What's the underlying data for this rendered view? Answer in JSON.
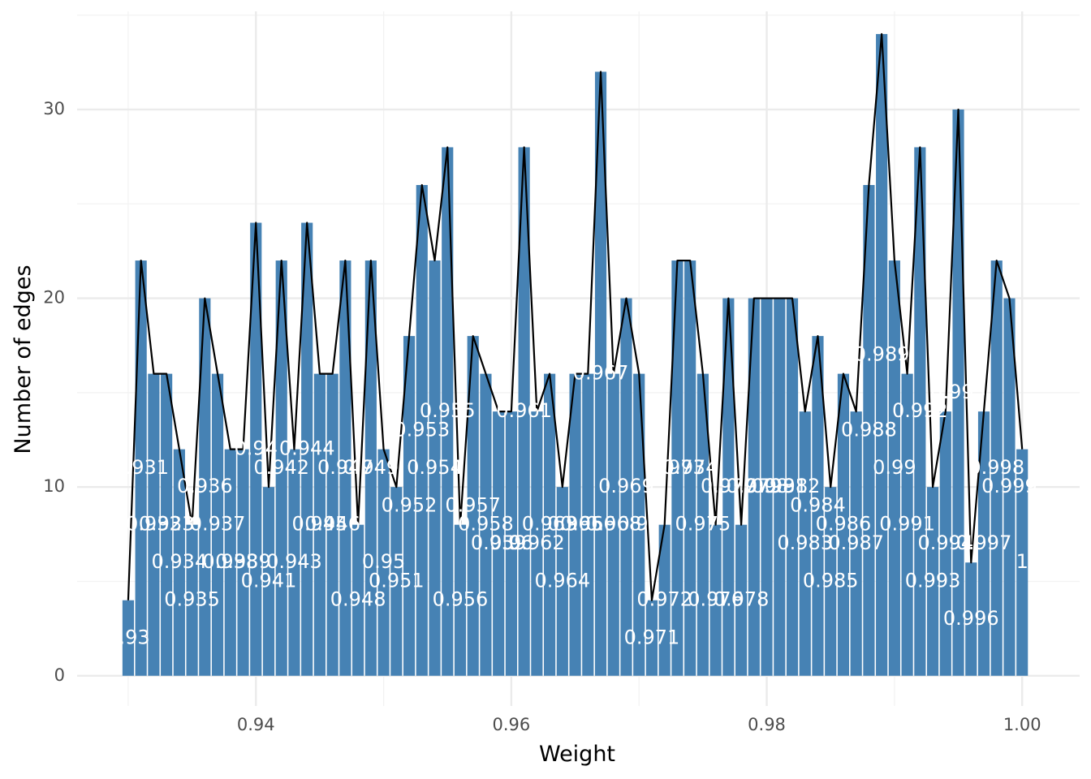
{
  "chart_data": {
    "type": "bar",
    "title": "",
    "xlabel": "Weight",
    "ylabel": "Number of edges",
    "xlim": [
      0.926,
      1.0045
    ],
    "ylim": [
      -1.6,
      35.2
    ],
    "x_ticks": [
      0.94,
      0.96,
      0.98,
      1.0
    ],
    "x_tick_labels": [
      "0.94",
      "0.96",
      "0.98",
      "1.00"
    ],
    "y_ticks": [
      0,
      10,
      20,
      30
    ],
    "y_tick_labels": [
      "0",
      "10",
      "20",
      "30"
    ],
    "grid": true,
    "legend": "none",
    "bar_color": "#4682B4",
    "line_color": "#000000",
    "label_color": "#ffffff",
    "points": [
      {
        "x": 0.93,
        "y": 4,
        "label": "0.93"
      },
      {
        "x": 0.931,
        "y": 22,
        "label": "0.931"
      },
      {
        "x": 0.932,
        "y": 16,
        "label": "0.932"
      },
      {
        "x": 0.933,
        "y": 16,
        "label": "0.933"
      },
      {
        "x": 0.934,
        "y": 12,
        "label": "0.934"
      },
      {
        "x": 0.935,
        "y": 8,
        "label": "0.935"
      },
      {
        "x": 0.936,
        "y": 20,
        "label": "0.936"
      },
      {
        "x": 0.937,
        "y": 16,
        "label": "0.937"
      },
      {
        "x": 0.938,
        "y": 12,
        "label": "0.938"
      },
      {
        "x": 0.939,
        "y": 12,
        "label": "0.939"
      },
      {
        "x": 0.94,
        "y": 24,
        "label": "0.94"
      },
      {
        "x": 0.941,
        "y": 10,
        "label": "0.941"
      },
      {
        "x": 0.942,
        "y": 22,
        "label": "0.942"
      },
      {
        "x": 0.943,
        "y": 12,
        "label": "0.943"
      },
      {
        "x": 0.944,
        "y": 24,
        "label": "0.944"
      },
      {
        "x": 0.945,
        "y": 16,
        "label": "0.945"
      },
      {
        "x": 0.946,
        "y": 16,
        "label": "0.946"
      },
      {
        "x": 0.947,
        "y": 22,
        "label": "0.947"
      },
      {
        "x": 0.948,
        "y": 8,
        "label": "0.948"
      },
      {
        "x": 0.949,
        "y": 22,
        "label": "0.949"
      },
      {
        "x": 0.95,
        "y": 12,
        "label": "0.95"
      },
      {
        "x": 0.951,
        "y": 10,
        "label": "0.951"
      },
      {
        "x": 0.952,
        "y": 18,
        "label": "0.952"
      },
      {
        "x": 0.953,
        "y": 26,
        "label": "0.953"
      },
      {
        "x": 0.954,
        "y": 22,
        "label": "0.954"
      },
      {
        "x": 0.955,
        "y": 28,
        "label": "0.955"
      },
      {
        "x": 0.956,
        "y": 8,
        "label": "0.956"
      },
      {
        "x": 0.957,
        "y": 18,
        "label": "0.957"
      },
      {
        "x": 0.958,
        "y": 16,
        "label": "0.958"
      },
      {
        "x": 0.959,
        "y": 14,
        "label": "0.959"
      },
      {
        "x": 0.96,
        "y": 14,
        "label": "0.96"
      },
      {
        "x": 0.961,
        "y": 28,
        "label": "0.961"
      },
      {
        "x": 0.962,
        "y": 14,
        "label": "0.962"
      },
      {
        "x": 0.963,
        "y": 16,
        "label": "0.963"
      },
      {
        "x": 0.964,
        "y": 10,
        "label": "0.964"
      },
      {
        "x": 0.965,
        "y": 16,
        "label": "0.965"
      },
      {
        "x": 0.966,
        "y": 16,
        "label": "0.966"
      },
      {
        "x": 0.967,
        "y": 32,
        "label": "0.967"
      },
      {
        "x": 0.968,
        "y": 16,
        "label": "0.968"
      },
      {
        "x": 0.969,
        "y": 20,
        "label": "0.969"
      },
      {
        "x": 0.97,
        "y": 16,
        "label": "0.97"
      },
      {
        "x": 0.971,
        "y": 4,
        "label": "0.971"
      },
      {
        "x": 0.972,
        "y": 8,
        "label": "0.972"
      },
      {
        "x": 0.973,
        "y": 22,
        "label": "0.973"
      },
      {
        "x": 0.974,
        "y": 22,
        "label": "0.974"
      },
      {
        "x": 0.975,
        "y": 16,
        "label": "0.975"
      },
      {
        "x": 0.976,
        "y": 8,
        "label": "0.976"
      },
      {
        "x": 0.977,
        "y": 20,
        "label": "0.977"
      },
      {
        "x": 0.978,
        "y": 8,
        "label": "0.978"
      },
      {
        "x": 0.979,
        "y": 20,
        "label": "0.979"
      },
      {
        "x": 0.98,
        "y": 20,
        "label": "0.98"
      },
      {
        "x": 0.981,
        "y": 20,
        "label": "0.981"
      },
      {
        "x": 0.982,
        "y": 20,
        "label": "0.982"
      },
      {
        "x": 0.983,
        "y": 14,
        "label": "0.983"
      },
      {
        "x": 0.984,
        "y": 18,
        "label": "0.984"
      },
      {
        "x": 0.985,
        "y": 10,
        "label": "0.985"
      },
      {
        "x": 0.986,
        "y": 16,
        "label": "0.986"
      },
      {
        "x": 0.987,
        "y": 14,
        "label": "0.987"
      },
      {
        "x": 0.988,
        "y": 26,
        "label": "0.988"
      },
      {
        "x": 0.989,
        "y": 34,
        "label": "0.989"
      },
      {
        "x": 0.99,
        "y": 22,
        "label": "0.99"
      },
      {
        "x": 0.991,
        "y": 16,
        "label": "0.991"
      },
      {
        "x": 0.992,
        "y": 28,
        "label": "0.992"
      },
      {
        "x": 0.993,
        "y": 10,
        "label": "0.993"
      },
      {
        "x": 0.994,
        "y": 14,
        "label": "0.994"
      },
      {
        "x": 0.995,
        "y": 30,
        "label": "0.995"
      },
      {
        "x": 0.996,
        "y": 6,
        "label": "0.996"
      },
      {
        "x": 0.997,
        "y": 14,
        "label": "0.997"
      },
      {
        "x": 0.998,
        "y": 22,
        "label": "0.998"
      },
      {
        "x": 0.999,
        "y": 20,
        "label": "0.999"
      },
      {
        "x": 1.0,
        "y": 12,
        "label": "1"
      }
    ]
  }
}
